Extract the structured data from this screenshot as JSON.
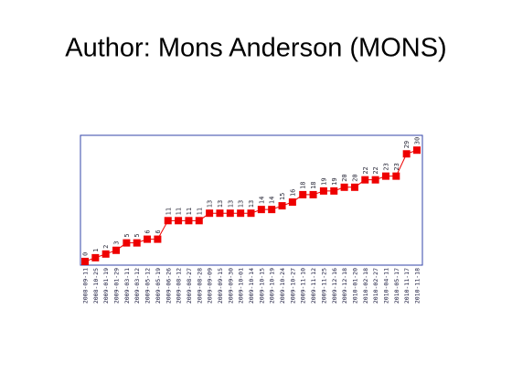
{
  "chart_data": {
    "type": "line",
    "title": "Author: Mons Anderson (MONS)",
    "categories": [
      "2008-09-11",
      "2008-10-25",
      "2009-01-19",
      "2009-01-29",
      "2009-03-11",
      "2009-03-12",
      "2009-05-12",
      "2009-05-19",
      "2009-06-26",
      "2009-08-12",
      "2009-08-27",
      "2009-08-28",
      "2009-09-09",
      "2009-09-15",
      "2009-09-30",
      "2009-10-01",
      "2009-10-14",
      "2009-10-15",
      "2009-10-19",
      "2009-10-24",
      "2009-10-27",
      "2009-11-10",
      "2009-11-12",
      "2009-11-25",
      "2009-12-16",
      "2009-12-18",
      "2010-01-20",
      "2010-02-18",
      "2010-02-27",
      "2010-04-11",
      "2010-05-17",
      "2010-11-17",
      "2010-11-18"
    ],
    "values": [
      0,
      1,
      2,
      3,
      5,
      5,
      6,
      6,
      11,
      11,
      11,
      11,
      13,
      13,
      13,
      13,
      13,
      14,
      14,
      15,
      16,
      18,
      18,
      19,
      19,
      20,
      20,
      22,
      22,
      23,
      23,
      29,
      30
    ],
    "color": "#ee0000",
    "ylim": [
      -1,
      34
    ]
  }
}
